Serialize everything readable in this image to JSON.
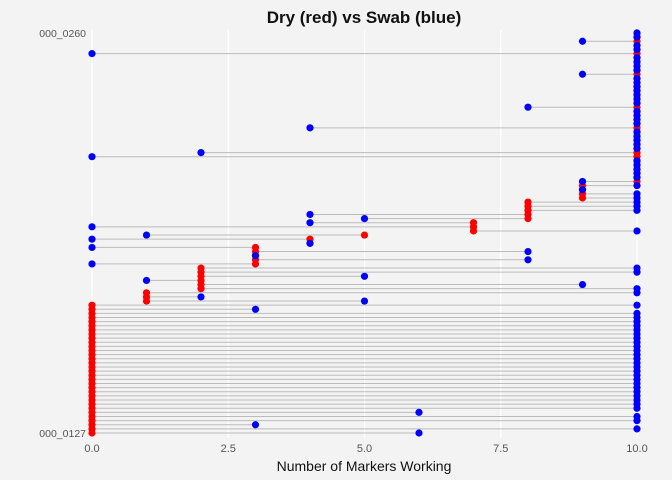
{
  "chart_data": {
    "type": "dumbbell",
    "title": "Dry (red) vs Swab (blue)",
    "xlabel": "Number of Markers Working",
    "ylabel": "",
    "xlim": [
      0,
      10
    ],
    "x_ticks": [
      "0.0",
      "2.5",
      "5.0",
      "7.5",
      "10.0"
    ],
    "x_tick_values": [
      0,
      2.5,
      5,
      7.5,
      10
    ],
    "grid": "vertical",
    "colors": {
      "dry": "#ff0000",
      "swab": "#0000ff",
      "segment": "#bbbbbb",
      "grid": "#ffffff"
    },
    "y_categories_visible": [
      "000_0260",
      "000_0127"
    ],
    "series": [
      {
        "name": "Dry",
        "values": [
          0,
          0,
          0,
          0,
          0,
          0,
          0,
          0,
          0,
          0,
          0,
          0,
          0,
          0,
          0,
          0,
          0,
          0,
          0,
          0,
          0,
          0,
          0,
          0,
          0,
          0,
          0,
          0,
          0,
          0,
          0,
          0,
          1,
          1,
          1,
          2,
          2,
          2,
          2,
          2,
          2,
          3,
          3,
          3,
          3,
          3,
          4,
          4,
          5,
          7,
          7,
          7,
          8,
          8,
          8,
          8,
          8,
          9,
          9,
          9,
          9,
          10,
          10,
          10,
          10,
          10,
          10,
          10,
          10,
          10,
          10,
          10,
          10,
          10,
          10,
          10,
          10,
          10,
          10,
          10,
          10,
          10,
          10,
          10,
          10,
          10,
          10,
          10,
          10,
          10,
          10,
          10,
          10,
          10,
          10,
          10,
          10,
          10
        ]
      },
      {
        "name": "Swab",
        "values": [
          6,
          10,
          3,
          10,
          10,
          6,
          10,
          10,
          10,
          10,
          10,
          10,
          10,
          10,
          10,
          10,
          10,
          10,
          10,
          10,
          10,
          10,
          10,
          10,
          10,
          10,
          10,
          10,
          10,
          10,
          3,
          10,
          5,
          2,
          10,
          10,
          9,
          1,
          5,
          10,
          10,
          0,
          8,
          3,
          8,
          0,
          4,
          0,
          1,
          10,
          0,
          4,
          5,
          4,
          10,
          10,
          10,
          10,
          10,
          9,
          10,
          9,
          10,
          10,
          10,
          10,
          10,
          0,
          2,
          10,
          10,
          10,
          10,
          10,
          4,
          10,
          10,
          10,
          10,
          8,
          10,
          10,
          10,
          10,
          10,
          10,
          10,
          9,
          10,
          10,
          10,
          10,
          0,
          10,
          10,
          9,
          10,
          10
        ]
      }
    ]
  }
}
